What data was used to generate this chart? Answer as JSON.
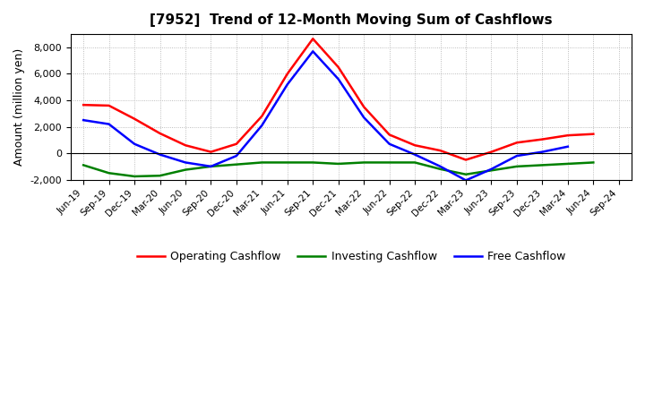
{
  "title": "[7952]  Trend of 12-Month Moving Sum of Cashflows",
  "ylabel": "Amount (million yen)",
  "background_color": "#ffffff",
  "plot_bg_color": "#ffffff",
  "grid_color": "#aaaaaa",
  "x_labels": [
    "Jun-19",
    "Sep-19",
    "Dec-19",
    "Mar-20",
    "Jun-20",
    "Sep-20",
    "Dec-20",
    "Mar-21",
    "Jun-21",
    "Sep-21",
    "Dec-21",
    "Mar-22",
    "Jun-22",
    "Sep-22",
    "Dec-22",
    "Mar-23",
    "Jun-23",
    "Sep-23",
    "Dec-23",
    "Mar-24",
    "Jun-24",
    "Sep-24"
  ],
  "operating": [
    3650,
    3600,
    2600,
    1500,
    600,
    100,
    700,
    2800,
    6000,
    8650,
    6500,
    3500,
    1400,
    600,
    200,
    -500,
    100,
    800,
    1050,
    1350,
    1450,
    null
  ],
  "investing": [
    -900,
    -1500,
    -1750,
    -1700,
    -1250,
    -1000,
    -850,
    -700,
    -700,
    -700,
    -800,
    -700,
    -700,
    -700,
    -1200,
    -1600,
    -1300,
    -1000,
    -900,
    -800,
    -700,
    null
  ],
  "free": [
    2500,
    2200,
    700,
    -100,
    -700,
    -1000,
    -200,
    2100,
    5200,
    7700,
    5600,
    2700,
    700,
    -100,
    -1000,
    -2050,
    -1200,
    -200,
    100,
    500,
    null,
    null
  ],
  "ylim": [
    -2000,
    9000
  ],
  "yticks": [
    -2000,
    0,
    2000,
    4000,
    6000,
    8000
  ],
  "operating_color": "#ff0000",
  "investing_color": "#008000",
  "free_color": "#0000ff",
  "line_width": 1.8
}
